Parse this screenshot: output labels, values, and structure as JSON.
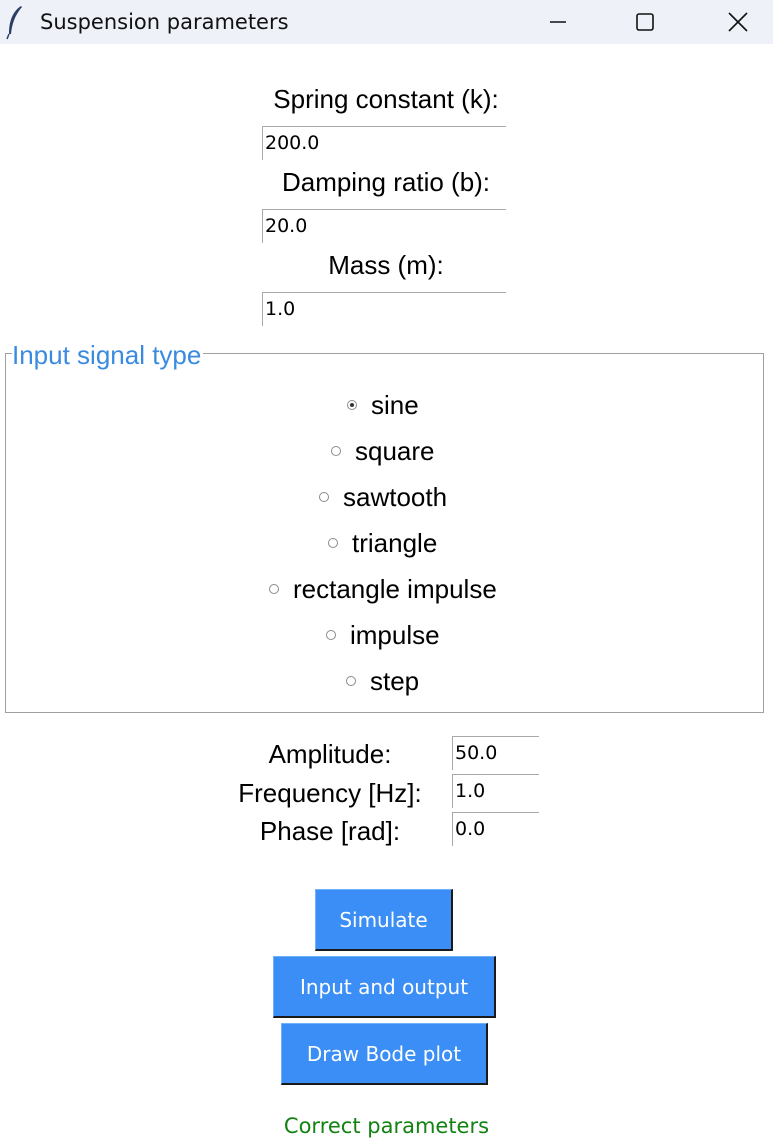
{
  "window": {
    "title": "Suspension parameters",
    "title_bar_color": "#eef1f8"
  },
  "params": {
    "spring_label": "Spring constant (k):",
    "spring_value": "200.0",
    "damping_label": "Damping ratio (b):",
    "damping_value": "20.0",
    "mass_label": "Mass (m):",
    "mass_value": "1.0"
  },
  "signal": {
    "group_title": "Input signal type",
    "options": [
      {
        "label": "sine",
        "checked": true
      },
      {
        "label": "square",
        "checked": false
      },
      {
        "label": "sawtooth",
        "checked": false
      },
      {
        "label": "triangle",
        "checked": false
      },
      {
        "label": "rectangle impulse",
        "checked": false
      },
      {
        "label": "impulse",
        "checked": false
      },
      {
        "label": "step",
        "checked": false
      }
    ],
    "accent_color": "#3a8be0"
  },
  "signal_params": {
    "amplitude_label": "Amplitude:",
    "amplitude_value": "50.0",
    "frequency_label": "Frequency [Hz]:",
    "frequency_value": "1.0",
    "phase_label": "Phase [rad]:",
    "phase_value": "0.0"
  },
  "buttons": {
    "simulate": "Simulate",
    "input_output": "Input and output",
    "bode": "Draw Bode plot",
    "color": "#3a8ef5"
  },
  "status": {
    "text": "Correct parameters",
    "color": "#128212"
  }
}
